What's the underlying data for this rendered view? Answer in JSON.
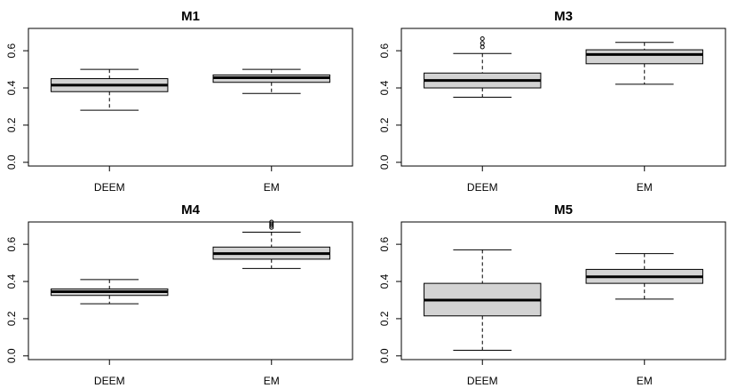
{
  "chart_data": [
    {
      "type": "box",
      "title": "M1",
      "categories": [
        "DEEM",
        "EM"
      ],
      "ylim": [
        -0.02,
        0.72
      ],
      "yticks": [
        "0.0",
        "0.2",
        "0.4",
        "0.6"
      ],
      "boxes": [
        {
          "category": "DEEM",
          "lower_whisker": 0.28,
          "q1": 0.38,
          "median": 0.415,
          "q3": 0.45,
          "upper_whisker": 0.5,
          "outliers": []
        },
        {
          "category": "EM",
          "lower_whisker": 0.37,
          "q1": 0.43,
          "median": 0.455,
          "q3": 0.47,
          "upper_whisker": 0.5,
          "outliers": []
        }
      ]
    },
    {
      "type": "box",
      "title": "M3",
      "categories": [
        "DEEM",
        "EM"
      ],
      "ylim": [
        -0.02,
        0.72
      ],
      "yticks": [
        "0.0",
        "0.2",
        "0.4",
        "0.6"
      ],
      "boxes": [
        {
          "category": "DEEM",
          "lower_whisker": 0.35,
          "q1": 0.4,
          "median": 0.44,
          "q3": 0.48,
          "upper_whisker": 0.585,
          "outliers": [
            0.62,
            0.64,
            0.665
          ]
        },
        {
          "category": "EM",
          "lower_whisker": 0.42,
          "q1": 0.53,
          "median": 0.58,
          "q3": 0.605,
          "upper_whisker": 0.645,
          "outliers": []
        }
      ]
    },
    {
      "type": "box",
      "title": "M4",
      "categories": [
        "DEEM",
        "EM"
      ],
      "ylim": [
        -0.02,
        0.72
      ],
      "yticks": [
        "0.0",
        "0.2",
        "0.4",
        "0.6"
      ],
      "boxes": [
        {
          "category": "DEEM",
          "lower_whisker": 0.28,
          "q1": 0.325,
          "median": 0.345,
          "q3": 0.36,
          "upper_whisker": 0.41,
          "outliers": []
        },
        {
          "category": "EM",
          "lower_whisker": 0.47,
          "q1": 0.52,
          "median": 0.55,
          "q3": 0.585,
          "upper_whisker": 0.665,
          "outliers": [
            0.69,
            0.7,
            0.71,
            0.72
          ]
        }
      ]
    },
    {
      "type": "box",
      "title": "M5",
      "categories": [
        "DEEM",
        "EM"
      ],
      "ylim": [
        -0.02,
        0.72
      ],
      "yticks": [
        "0.0",
        "0.2",
        "0.4",
        "0.6"
      ],
      "boxes": [
        {
          "category": "DEEM",
          "lower_whisker": 0.03,
          "q1": 0.215,
          "median": 0.3,
          "q3": 0.39,
          "upper_whisker": 0.57,
          "outliers": []
        },
        {
          "category": "EM",
          "lower_whisker": 0.305,
          "q1": 0.39,
          "median": 0.425,
          "q3": 0.465,
          "upper_whisker": 0.55,
          "outliers": []
        }
      ]
    }
  ],
  "style": {
    "box_fill": "#d3d3d3",
    "line_color": "#000000",
    "background": "#ffffff"
  }
}
